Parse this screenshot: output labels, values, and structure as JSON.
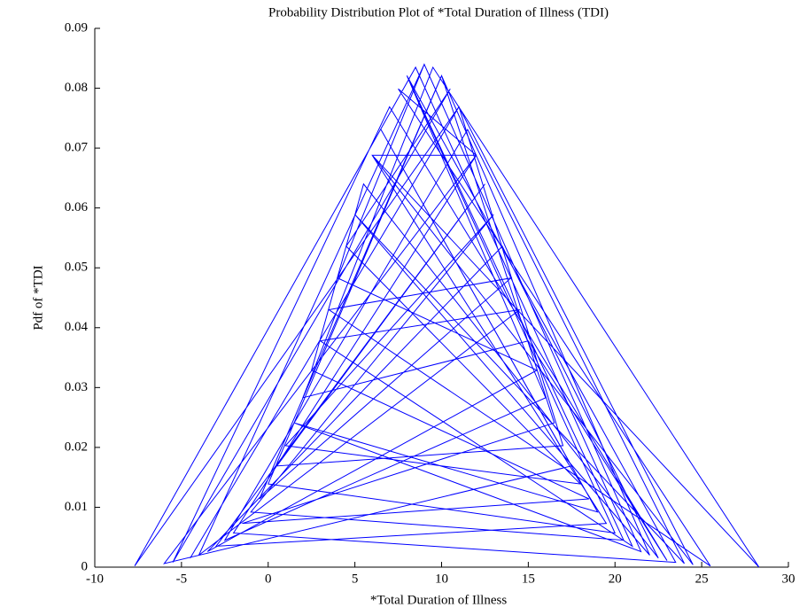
{
  "chart_data": {
    "type": "line",
    "title": "Probability Distribution Plot of *Total Duration of Illness (TDI)",
    "x_label": "*Total Duration of Illness",
    "y_label": "Pdf of *TDI",
    "color": "#0000ff",
    "x": [
      9,
      -4,
      14.5,
      3,
      21,
      8.5,
      -7.7,
      11,
      17,
      0.5,
      12.5,
      -3,
      19.5,
      6,
      28.3,
      9.5,
      2,
      15,
      23,
      7,
      -5.5,
      10.5,
      4.5,
      18,
      1,
      13,
      -1,
      20.5,
      8,
      16,
      -2.5,
      11.5,
      24,
      5,
      22,
      10,
      -0.5,
      14,
      3.5,
      25.5,
      7.5,
      12,
      -6,
      17.5,
      6.5,
      19,
      1.5,
      21.5,
      9,
      4,
      15.5,
      -3.5,
      13.5,
      22.5,
      5.5,
      2.5,
      18.5,
      -1.5,
      16.5,
      10,
      0,
      20,
      8,
      23.5,
      -2,
      12,
      6,
      24.5,
      11,
      -4.5
    ],
    "values": [
      0.084,
      0.002,
      0.043,
      0.0378,
      0.0035,
      0.0835,
      0.0002,
      0.0769,
      0.0203,
      0.0169,
      0.064,
      0.0035,
      0.0073,
      0.0688,
      2e-05,
      0.0835,
      0.0283,
      0.0378,
      0.0011,
      0.0769,
      0.0008,
      0.0799,
      0.0536,
      0.0139,
      0.0203,
      0.0589,
      0.0092,
      0.0045,
      0.0821,
      0.0283,
      0.0045,
      0.0731,
      0.0006,
      0.0589,
      0.002,
      0.0821,
      0.0114,
      0.0483,
      0.043,
      0.0002,
      0.0799,
      0.0688,
      0.0006,
      0.0169,
      0.0731,
      0.0092,
      0.0241,
      0.0026,
      0.084,
      0.0483,
      0.0329,
      0.0026,
      0.0536,
      0.0015,
      0.064,
      0.0329,
      0.0114,
      0.0073,
      0.0241,
      0.0821,
      0.0139,
      0.0057,
      0.0821,
      0.0008,
      0.0057,
      0.0688,
      0.0688,
      0.0004,
      0.0769,
      0.0015
    ],
    "xlim": [
      -10,
      30
    ],
    "xticks": [
      -10,
      -5,
      0,
      5,
      10,
      15,
      20,
      25,
      30
    ],
    "ylim": [
      0,
      0.09
    ],
    "yticks": [
      0,
      0.01,
      0.02,
      0.03,
      0.04,
      0.05,
      0.06,
      0.07,
      0.08,
      0.09
    ],
    "grid": false
  }
}
